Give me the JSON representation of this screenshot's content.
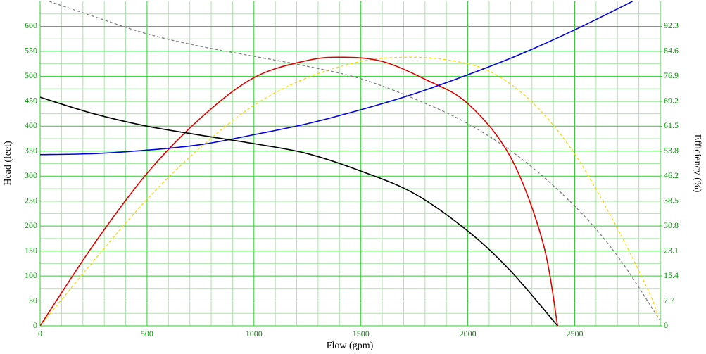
{
  "chart_data": {
    "type": "line",
    "x_label": "Flow (gpm)",
    "y_label": "Head (feet)",
    "y2_label": "Efficiency (%)",
    "xlim": [
      0,
      2900
    ],
    "ylim": [
      0,
      650
    ],
    "y2lim": [
      0,
      100
    ],
    "xticks": [
      0,
      500,
      1000,
      1500,
      2000,
      2500
    ],
    "yticks": [
      0,
      50,
      100,
      150,
      200,
      250,
      300,
      350,
      400,
      450,
      500,
      550,
      600
    ],
    "y2ticks": [
      0,
      7.7,
      15.4,
      23.1,
      30.8,
      38.5,
      46.2,
      53.8,
      61.5,
      69.2,
      76.9,
      84.6,
      92.3
    ],
    "xminorticks": [
      100,
      200,
      300,
      400,
      600,
      700,
      800,
      900,
      1100,
      1200,
      1300,
      1400,
      1600,
      1700,
      1800,
      1900,
      2100,
      2200,
      2300,
      2400,
      2600,
      2700,
      2800,
      2900
    ],
    "yminorticks": [
      25,
      75,
      125,
      175,
      225,
      275,
      325,
      375,
      425,
      475,
      525,
      575,
      625
    ],
    "grid": true,
    "series": [
      {
        "color": "#808080",
        "dash": true,
        "x": [
          43,
          250,
          500,
          750,
          1000,
          1250,
          1500,
          1750,
          2000,
          2250,
          2500,
          2700,
          2900
        ],
        "values": [
          650,
          620,
          585,
          560,
          540,
          520,
          495,
          455,
          405,
          335,
          240,
          140,
          10
        ]
      },
      {
        "color": "#ffd700",
        "dash": true,
        "axis": "y2",
        "x": [
          0,
          250,
          500,
          750,
          1000,
          1250,
          1500,
          1700,
          1900,
          2100,
          2300,
          2500,
          2700,
          2850,
          2890
        ],
        "values": [
          0,
          20,
          39,
          55,
          68,
          76.5,
          81.5,
          82.8,
          82,
          78.5,
          69,
          53,
          30,
          10,
          3
        ]
      },
      {
        "color": "#e00000",
        "axis": "y2",
        "x": [
          0,
          250,
          500,
          750,
          1000,
          1250,
          1420,
          1600,
          1800,
          2000,
          2200,
          2350,
          2420
        ],
        "values": [
          0,
          25,
          47,
          64,
          76.5,
          81.8,
          82.8,
          81.5,
          76,
          68.5,
          52,
          26,
          0
        ]
      },
      {
        "color": "#0000e0",
        "x": [
          0,
          250,
          500,
          750,
          1000,
          1250,
          1500,
          1750,
          2000,
          2250,
          2500,
          2770
        ],
        "values": [
          343,
          345,
          352,
          363,
          383,
          405,
          433,
          465,
          503,
          545,
          593,
          650
        ]
      },
      {
        "color": "#000000",
        "x": [
          0,
          250,
          500,
          750,
          1000,
          1250,
          1500,
          1750,
          2000,
          2200,
          2420
        ],
        "values": [
          458,
          425,
          400,
          382,
          365,
          345,
          310,
          265,
          190,
          110,
          0
        ]
      }
    ]
  }
}
